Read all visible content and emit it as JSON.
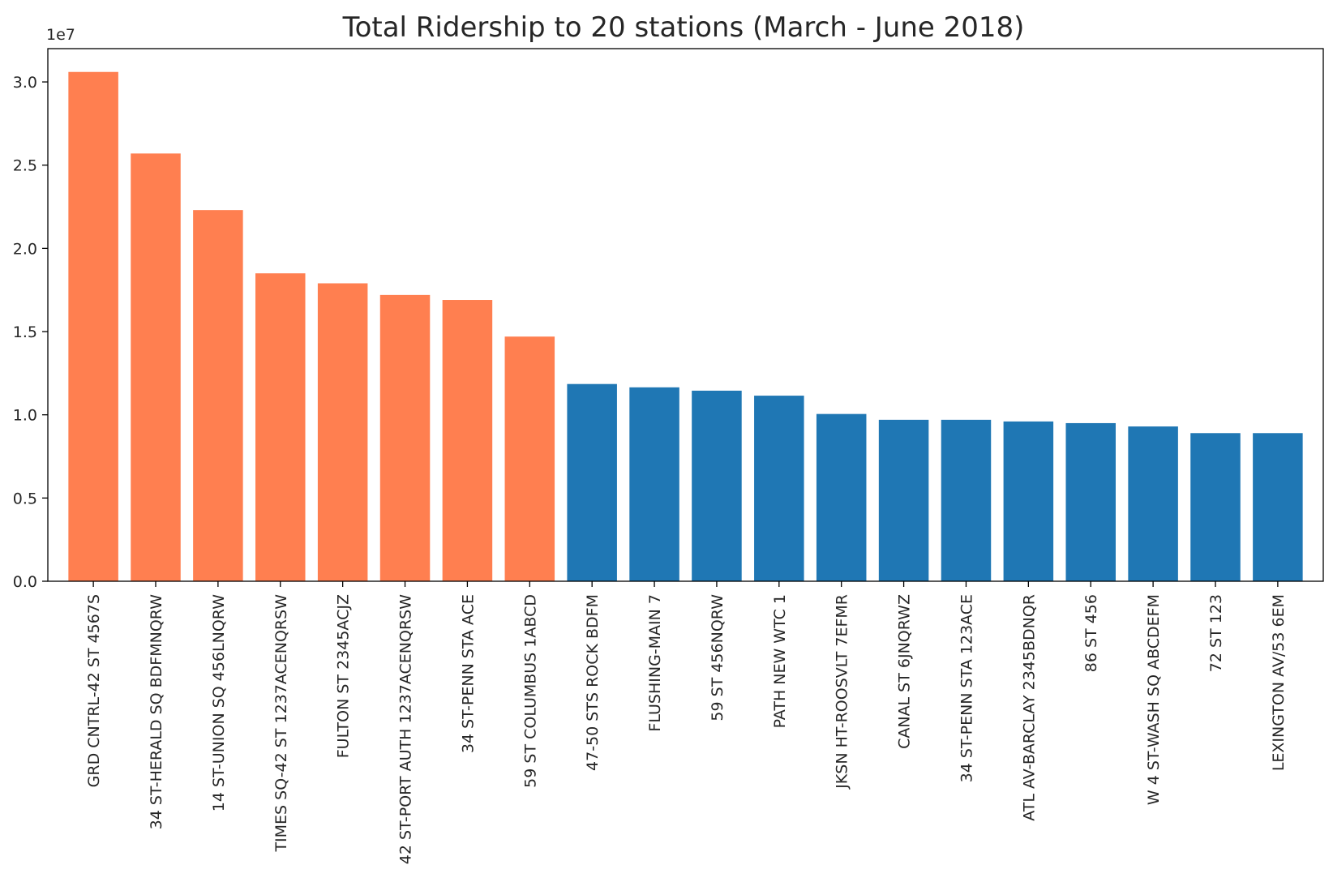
{
  "chart_data": {
    "type": "bar",
    "title": "Total Ridership to 20 stations (March - June 2018)",
    "xlabel": "",
    "ylabel": "",
    "y_offset_label": "1e7",
    "y_scale_factor": 10000000,
    "ylim": [
      0,
      3.2
    ],
    "yticks": [
      0.0,
      0.5,
      1.0,
      1.5,
      2.0,
      2.5,
      3.0
    ],
    "ytick_labels": [
      "0.0",
      "0.5",
      "1.0",
      "1.5",
      "2.0",
      "2.5",
      "3.0"
    ],
    "grid": false,
    "legend": false,
    "colors": {
      "highlight": "#FF7F50",
      "default": "#1F77B4"
    },
    "categories": [
      "GRD CNTRL-42 ST 4567S",
      "34 ST-HERALD SQ BDFMNQRW",
      "14 ST-UNION SQ 456LNQRW",
      "TIMES SQ-42 ST 1237ACENQRSW",
      "FULTON ST 2345ACJZ",
      "42 ST-PORT AUTH 1237ACENQRSW",
      "34 ST-PENN STA ACE",
      "59 ST COLUMBUS 1ABCD",
      "47-50 STS ROCK BDFM",
      "FLUSHING-MAIN 7",
      "59 ST 456NQRW",
      "PATH NEW WTC 1",
      "JKSN HT-ROOSVLT 7EFMR",
      "CANAL ST 6JNQRWZ",
      "34 ST-PENN STA 123ACE",
      "ATL AV-BARCLAY 2345BDNQR",
      "86 ST 456",
      "W 4 ST-WASH SQ ABCDEFM",
      "72 ST 123",
      "LEXINGTON AV/53 6EM"
    ],
    "values": [
      30600000,
      25700000,
      22300000,
      18500000,
      17900000,
      17200000,
      16900000,
      14700000,
      11850000,
      11650000,
      11450000,
      11150000,
      10050000,
      9700000,
      9700000,
      9600000,
      9500000,
      9300000,
      8900000,
      8900000
    ],
    "highlighted": [
      true,
      true,
      true,
      true,
      true,
      true,
      true,
      true,
      false,
      false,
      false,
      false,
      false,
      false,
      false,
      false,
      false,
      false,
      false,
      false
    ]
  }
}
